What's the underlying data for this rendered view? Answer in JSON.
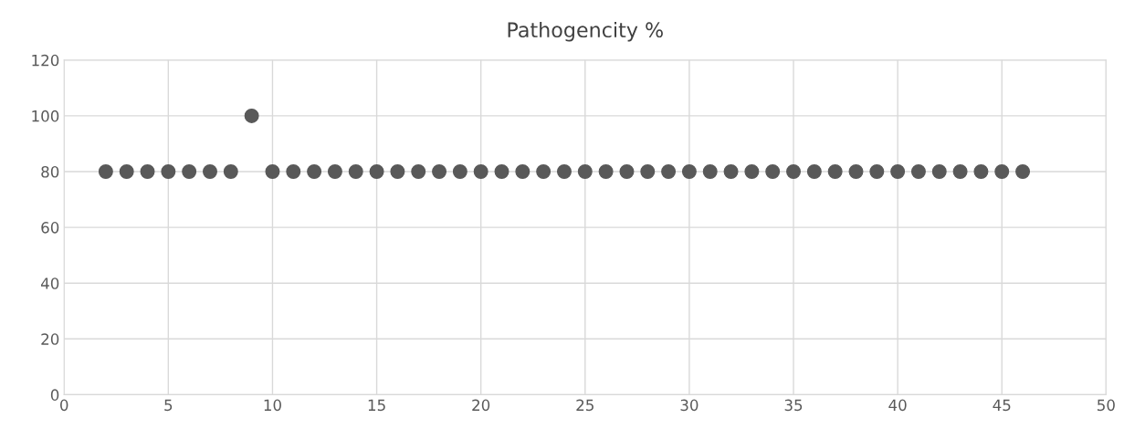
{
  "chart_data": {
    "type": "scatter",
    "title": "Pathogencity %",
    "x": [
      2,
      3,
      4,
      5,
      6,
      7,
      8,
      9,
      10,
      11,
      12,
      13,
      14,
      15,
      16,
      17,
      18,
      19,
      20,
      21,
      22,
      23,
      24,
      25,
      26,
      27,
      28,
      29,
      30,
      31,
      32,
      33,
      34,
      35,
      36,
      37,
      38,
      39,
      40,
      41,
      42,
      43,
      44,
      45,
      46
    ],
    "series": [
      {
        "color": "#595959",
        "values": [
          80,
          80,
          80,
          80,
          80,
          80,
          80,
          100,
          80,
          80,
          80,
          80,
          80,
          80,
          80,
          80,
          80,
          80,
          80,
          80,
          80,
          80,
          80,
          80,
          80,
          80,
          80,
          80,
          80,
          80,
          80,
          80,
          80,
          80,
          80,
          80,
          80,
          80,
          80,
          80,
          80,
          80,
          80,
          80,
          80
        ]
      }
    ],
    "xlim": [
      0,
      50
    ],
    "xticks": [
      0,
      5,
      10,
      15,
      20,
      25,
      30,
      35,
      40,
      45,
      50
    ],
    "ylim": [
      0,
      120
    ],
    "yticks": [
      0,
      20,
      40,
      60,
      80,
      100,
      120
    ],
    "grid": true,
    "marker": "circle",
    "legend": false
  }
}
